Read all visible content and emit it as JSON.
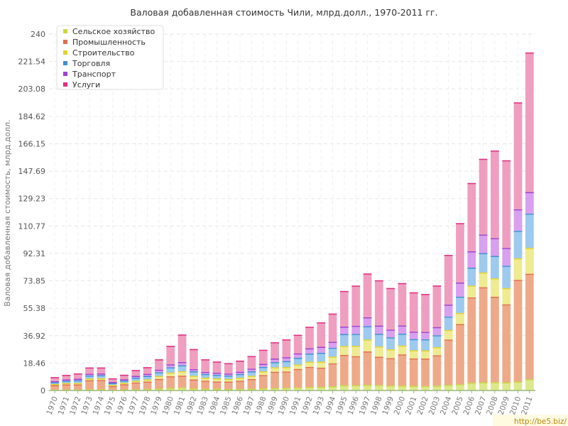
{
  "chart_data": {
    "type": "bar",
    "stacked": true,
    "title": "Валовая добавленная стоимость Чили, млрд.долл., 1970-2011 гг.",
    "ylabel": "Валовая добавленная стоимость, млрд.долл.",
    "xlabel": "",
    "ylim": [
      0,
      240
    ],
    "yticks": [
      "0",
      "18.46",
      "36.92",
      "55.38",
      "73.85",
      "92.31",
      "110.77",
      "129.23",
      "147.69",
      "166.15",
      "184.62",
      "203.08",
      "221.54",
      "240"
    ],
    "grid": true,
    "legend_position": "top-left",
    "categories": [
      "1970",
      "1971",
      "1972",
      "1973",
      "1974",
      "1975",
      "1976",
      "1977",
      "1978",
      "1979",
      "1980",
      "1981",
      "1982",
      "1983",
      "1984",
      "1985",
      "1986",
      "1987",
      "1988",
      "1989",
      "1990",
      "1991",
      "1992",
      "1993",
      "1994",
      "1995",
      "1996",
      "1997",
      "1998",
      "1999",
      "2000",
      "2001",
      "2002",
      "2003",
      "2004",
      "2005",
      "2006",
      "2007",
      "2008",
      "2009",
      "2010",
      "2011"
    ],
    "series": [
      {
        "name": "Сельское хозяйство",
        "color": "#c8d840",
        "fill": "#dde88a",
        "values": [
          0.6,
          0.7,
          0.7,
          0.9,
          0.9,
          0.5,
          0.7,
          0.9,
          1.0,
          1.3,
          1.6,
          2.0,
          1.4,
          1.1,
          1.1,
          1.0,
          1.1,
          1.2,
          1.4,
          1.6,
          1.8,
          2.0,
          2.4,
          2.4,
          2.8,
          3.5,
          3.6,
          3.8,
          3.7,
          3.3,
          3.3,
          3.1,
          3.0,
          3.2,
          3.8,
          4.2,
          5.2,
          5.5,
          5.6,
          5.5,
          6.0,
          7.6
        ]
      },
      {
        "name": "Промышленность",
        "color": "#e07050",
        "fill": "#eeaa88",
        "values": [
          3.0,
          3.4,
          3.4,
          6.0,
          6.2,
          2.5,
          3.5,
          4.5,
          5.0,
          6.5,
          8.0,
          8.0,
          6.0,
          5.5,
          5.0,
          5.0,
          5.5,
          6.5,
          9.0,
          11.0,
          11.0,
          12.5,
          13.5,
          13.0,
          15.5,
          20.5,
          19.5,
          22.5,
          19.0,
          18.5,
          21.0,
          18.5,
          18.5,
          20.5,
          30.5,
          40.5,
          57.5,
          64.0,
          57.5,
          52.5,
          68.5,
          71.0
        ]
      },
      {
        "name": "Строительство",
        "color": "#e0d030",
        "fill": "#eeeb90",
        "values": [
          0.7,
          0.9,
          1.0,
          1.2,
          1.2,
          0.8,
          1.0,
          1.2,
          1.5,
          2.0,
          2.5,
          3.0,
          2.5,
          2.0,
          2.0,
          1.8,
          2.0,
          2.2,
          2.5,
          3.0,
          3.0,
          3.0,
          3.5,
          4.0,
          4.5,
          6.0,
          7.0,
          8.0,
          7.0,
          6.0,
          6.0,
          5.5,
          5.5,
          5.5,
          6.5,
          7.5,
          8.0,
          10.0,
          12.5,
          11.0,
          14.5,
          17.5
        ]
      },
      {
        "name": "Торговля",
        "color": "#4090d0",
        "fill": "#9dcaee",
        "values": [
          1.3,
          1.5,
          1.8,
          2.0,
          2.0,
          1.2,
          1.5,
          2.0,
          2.3,
          2.5,
          3.5,
          4.0,
          3.0,
          2.5,
          2.5,
          2.3,
          2.5,
          3.0,
          3.0,
          3.5,
          4.0,
          4.5,
          5.5,
          6.0,
          6.0,
          8.0,
          8.0,
          9.0,
          8.5,
          8.0,
          8.0,
          7.5,
          7.5,
          8.0,
          9.0,
          11.0,
          12.0,
          13.0,
          15.0,
          15.0,
          18.5,
          23.0
        ]
      },
      {
        "name": "Транспорт",
        "color": "#a040d0",
        "fill": "#d8a0ee",
        "values": [
          0.7,
          0.9,
          1.0,
          1.2,
          1.2,
          0.7,
          0.9,
          1.2,
          1.4,
          1.7,
          2.0,
          2.2,
          1.5,
          1.4,
          1.4,
          1.3,
          1.5,
          1.8,
          2.0,
          2.4,
          2.6,
          3.0,
          3.5,
          4.0,
          4.0,
          5.0,
          5.5,
          6.0,
          5.5,
          5.2,
          5.5,
          5.0,
          5.0,
          5.5,
          8.0,
          9.5,
          11.0,
          12.5,
          12.0,
          12.0,
          14.5,
          14.5
        ]
      },
      {
        "name": "Услуги",
        "color": "#e03080",
        "fill": "#f09ec0",
        "values": [
          2.7,
          3.1,
          3.6,
          4.2,
          4.0,
          2.5,
          3.0,
          4.0,
          4.5,
          7.0,
          12.5,
          18.5,
          13.5,
          8.5,
          7.5,
          7.0,
          7.5,
          8.5,
          9.5,
          11.0,
          12.0,
          12.5,
          14.5,
          16.5,
          19.0,
          24.0,
          27.0,
          29.5,
          30.5,
          28.0,
          28.5,
          26.5,
          25.5,
          28.0,
          33.5,
          40.0,
          46.0,
          51.0,
          59.0,
          59.0,
          72.0,
          94.0
        ]
      }
    ]
  },
  "watermark": "http://be5.biz/"
}
